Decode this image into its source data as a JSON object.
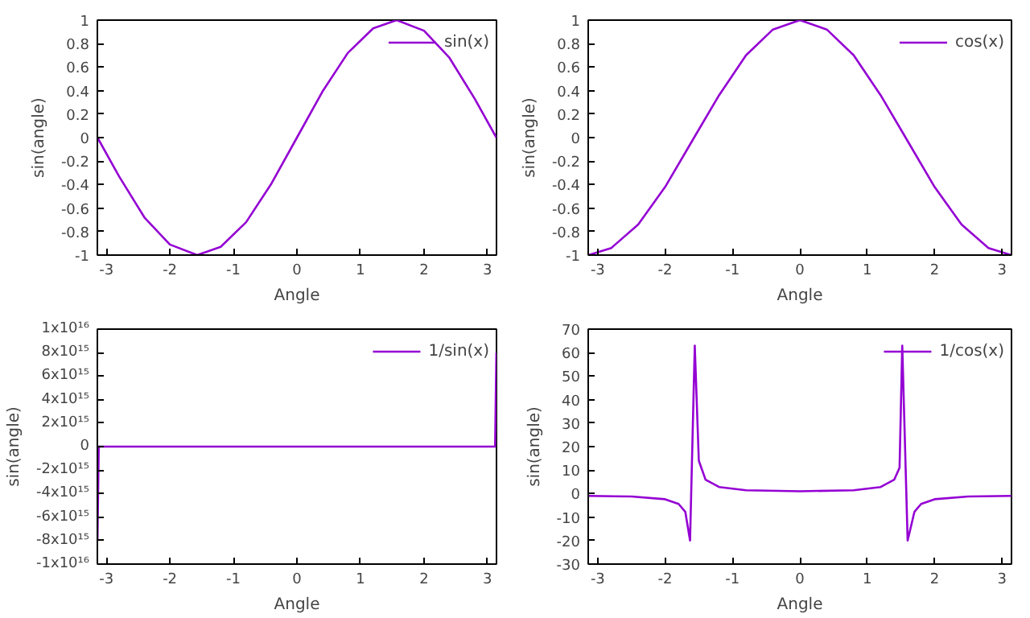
{
  "chart_data": [
    {
      "type": "line",
      "xlabel": "Angle",
      "ylabel": "sin(angle)",
      "legend": "top right",
      "x": [
        -3.14,
        -2.8,
        -2.4,
        -2.0,
        -1.57,
        -1.2,
        -0.8,
        -0.4,
        0,
        0.4,
        0.8,
        1.2,
        1.57,
        2.0,
        2.4,
        2.8,
        3.14
      ],
      "series": [
        {
          "name": "sin(x)",
          "color": "#9400d3",
          "values": [
            0,
            -0.33,
            -0.68,
            -0.91,
            -1,
            -0.93,
            -0.72,
            -0.39,
            0,
            0.39,
            0.72,
            0.93,
            1,
            0.91,
            0.68,
            0.33,
            0
          ]
        }
      ],
      "xlim": [
        -3.14159,
        3.14159
      ],
      "ylim": [
        -1,
        1
      ],
      "xticks": [
        -3,
        -2,
        -1,
        0,
        1,
        2,
        3
      ],
      "yticks": [
        -1,
        -0.8,
        -0.6,
        -0.4,
        -0.2,
        0,
        0.2,
        0.4,
        0.6,
        0.8,
        1
      ]
    },
    {
      "type": "line",
      "xlabel": "Angle",
      "ylabel": "sin(angle)",
      "legend": "top right",
      "x": [
        -3.14,
        -2.8,
        -2.4,
        -2.0,
        -1.57,
        -1.2,
        -0.8,
        -0.4,
        0,
        0.4,
        0.8,
        1.2,
        1.57,
        2.0,
        2.4,
        2.8,
        3.14
      ],
      "series": [
        {
          "name": "cos(x)",
          "color": "#9400d3",
          "values": [
            -1,
            -0.94,
            -0.74,
            -0.42,
            0,
            0.36,
            0.7,
            0.92,
            1,
            0.92,
            0.7,
            0.36,
            0,
            -0.42,
            -0.74,
            -0.94,
            -1
          ]
        }
      ],
      "xlim": [
        -3.14159,
        3.14159
      ],
      "ylim": [
        -1,
        1
      ],
      "xticks": [
        -3,
        -2,
        -1,
        0,
        1,
        2,
        3
      ],
      "yticks": [
        -1,
        -0.8,
        -0.6,
        -0.4,
        -0.2,
        0,
        0.2,
        0.4,
        0.6,
        0.8,
        1
      ]
    },
    {
      "type": "line",
      "xlabel": "Angle",
      "ylabel": "sin(angle)",
      "legend": "top right",
      "x": [
        -3.14,
        -3.12,
        0,
        3.12,
        3.14
      ],
      "series": [
        {
          "name": "1/sin(x)",
          "color": "#9400d3",
          "values": [
            -8000000000000000.0,
            0,
            0,
            0,
            8000000000000000.0
          ]
        }
      ],
      "xlim": [
        -3.14159,
        3.14159
      ],
      "ylim": [
        -1e+16,
        1e+16
      ],
      "xticks": [
        -3,
        -2,
        -1,
        0,
        1,
        2,
        3
      ],
      "yticks": [
        {
          "value": -1e+16,
          "label": "-1x10¹⁶"
        },
        {
          "value": -8000000000000000.0,
          "label": "-8x10¹⁵"
        },
        {
          "value": -6000000000000000.0,
          "label": "-6x10¹⁵"
        },
        {
          "value": -4000000000000000.0,
          "label": "-4x10¹⁵"
        },
        {
          "value": -2000000000000000.0,
          "label": "-2x10¹⁵"
        },
        0,
        {
          "value": 2000000000000000.0,
          "label": "2x10¹⁵"
        },
        {
          "value": 4000000000000000.0,
          "label": "4x10¹⁵"
        },
        {
          "value": 6000000000000000.0,
          "label": "6x10¹⁵"
        },
        {
          "value": 8000000000000000.0,
          "label": "8x10¹⁵"
        },
        {
          "value": 1e+16,
          "label": "1x10¹⁶"
        }
      ]
    },
    {
      "type": "line",
      "xlabel": "Angle",
      "ylabel": "sin(angle)",
      "legend": "top right",
      "x": [
        -3.14,
        -2.5,
        -2.0,
        -1.8,
        -1.7,
        -1.63,
        -1.56,
        -1.5,
        -1.4,
        -1.2,
        -0.8,
        0,
        0.8,
        1.2,
        1.4,
        1.48,
        1.52,
        1.6,
        1.7,
        1.8,
        2.0,
        2.5,
        3.14
      ],
      "series": [
        {
          "name": "1/cos(x)",
          "color": "#9400d3",
          "values": [
            -1,
            -1.25,
            -2.4,
            -4.4,
            -7.8,
            -20,
            63,
            14,
            5.9,
            2.8,
            1.4,
            1,
            1.4,
            2.8,
            5.9,
            11,
            63,
            -20,
            -7.8,
            -4.4,
            -2.4,
            -1.25,
            -1
          ]
        }
      ],
      "xlim": [
        -3.14159,
        3.14159
      ],
      "ylim": [
        -30,
        70
      ],
      "xticks": [
        -3,
        -2,
        -1,
        0,
        1,
        2,
        3
      ],
      "yticks": [
        -30,
        -20,
        -10,
        0,
        10,
        20,
        30,
        40,
        50,
        60,
        70
      ]
    }
  ]
}
